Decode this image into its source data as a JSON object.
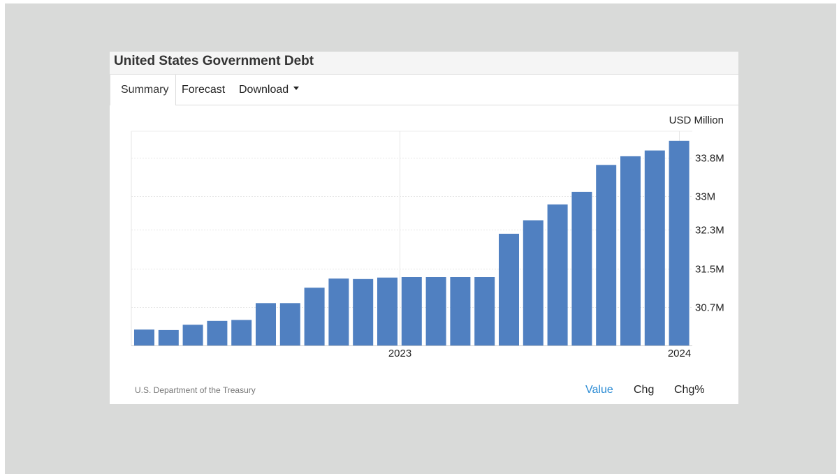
{
  "page": {
    "title": "United States Government Debt",
    "tabs": [
      {
        "label": "Summary",
        "active": true
      },
      {
        "label": "Forecast",
        "active": false
      },
      {
        "label": "Download",
        "active": false,
        "dropdown": true
      }
    ],
    "source": "U.S. Department of the Treasury",
    "view_buttons": [
      {
        "label": "Value",
        "active": true
      },
      {
        "label": "Chg",
        "active": false
      },
      {
        "label": "Chg%",
        "active": false
      }
    ],
    "accent_color": "#2a8bd4"
  },
  "chart_data": {
    "type": "bar",
    "title": "United States Government Debt",
    "unit_label": "USD Million",
    "bar_color": "#5080c1",
    "grid": true,
    "y_axis_position": "right",
    "ylim": [
      29900000,
      34350000
    ],
    "y_ticks": [
      {
        "value": 30700000,
        "label": "30.7M"
      },
      {
        "value": 31500000,
        "label": "31.5M"
      },
      {
        "value": 32300000,
        "label": "32.3M"
      },
      {
        "value": 33000000,
        "label": "33M"
      },
      {
        "value": 33800000,
        "label": "33.8M"
      }
    ],
    "x_ticks": [
      {
        "index": 10.5,
        "label": "2023"
      },
      {
        "index": 22,
        "label": "2024"
      }
    ],
    "values": [
      30230000,
      30220000,
      30330000,
      30410000,
      30430000,
      30780000,
      30780000,
      31100000,
      31290000,
      31280000,
      31310000,
      31320000,
      31320000,
      31320000,
      31320000,
      32220000,
      32500000,
      32830000,
      33090000,
      33650000,
      33830000,
      33950000,
      34150000
    ]
  }
}
